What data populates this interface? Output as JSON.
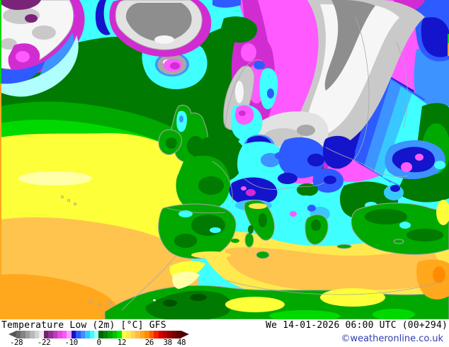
{
  "legend": {
    "title": "Temperature Low (2m) [°C] GFS",
    "datetime": "We 14-01-2026 06:00 UTC (00+294)",
    "copyright": "©weatheronline.co.uk",
    "copyright_color": "#2f3cb2"
  },
  "scale": {
    "unit": "°C",
    "tick_labels": [
      "-28",
      "-22",
      "-10",
      "0",
      "12",
      "26",
      "38",
      "48"
    ],
    "tick_positions_pct": [
      0,
      16.7,
      33.3,
      50,
      63.9,
      80.6,
      91.7,
      100
    ],
    "arrow_left_color": "#565656",
    "arrow_right_color": "#4a0000",
    "segment_colors": [
      "#6a6a6a",
      "#848484",
      "#9e9e9e",
      "#b8b8b8",
      "#d2d2d2",
      "#ececec",
      "#702470",
      "#943094",
      "#bc3cbc",
      "#e44ae4",
      "#ff55ff",
      "#ff9eff",
      "#1212c8",
      "#2e5bff",
      "#3d8fff",
      "#38c8ff",
      "#3cffff",
      "#aaffff",
      "#006600",
      "#008500",
      "#00a400",
      "#00c300",
      "#00e800",
      "#fdff38",
      "#ffe94f",
      "#ffd24f",
      "#ffbc42",
      "#ffa51e",
      "#ff8c00",
      "#ff5a00",
      "#f52000",
      "#d40000",
      "#b00000",
      "#920000",
      "#780000",
      "#5e0000"
    ]
  },
  "map": {
    "model": "GFS",
    "parameter": "Temperature Low (2m)",
    "palette": {
      "gray_dark": "#8e8e8e",
      "gray": "#a8a8a8",
      "gray_light": "#c9c9c9",
      "gray_pale": "#e2e2e2",
      "white_cold": "#f6f6f6",
      "purple_dark": "#7a2479",
      "magenta": "#d12cd1",
      "pink": "#ff5aff",
      "pink_pale": "#ff9eff",
      "blue_dark": "#1414cc",
      "blue": "#2e5bff",
      "blue_light": "#3d93ff",
      "cyan_blue": "#38c8ff",
      "cyan": "#3fffff",
      "cyan_pale": "#b0ffff",
      "green_darker": "#005200",
      "green_dark": "#007a00",
      "green": "#00a800",
      "green_bright": "#00d900",
      "yellow": "#fdff38",
      "yellow_pale": "#ffffa8",
      "yellow_deep": "#ffe94f",
      "orange_light": "#ffc44d",
      "orange": "#ffa81e",
      "orange_deep": "#ff8c00",
      "coast": "#a9a9a9"
    }
  }
}
